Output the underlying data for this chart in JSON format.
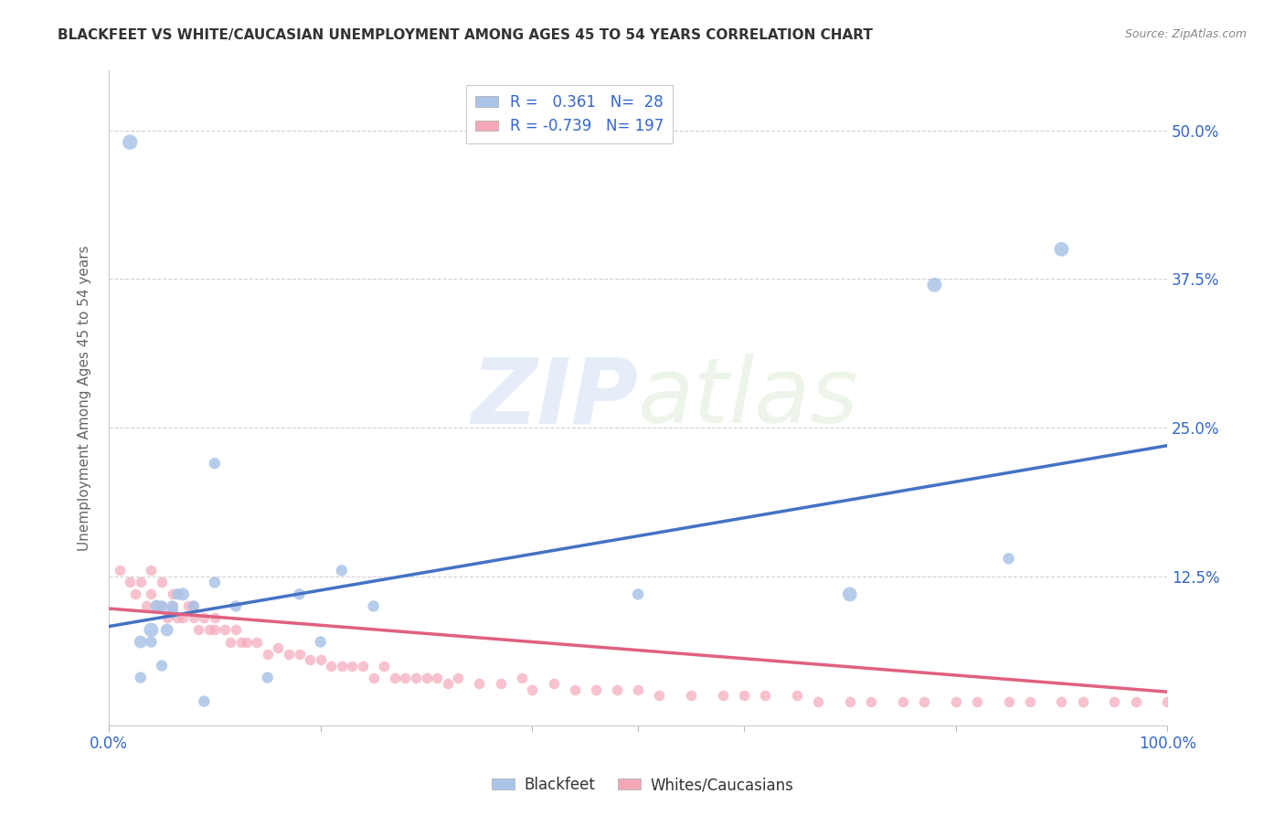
{
  "title": "BLACKFEET VS WHITE/CAUCASIAN UNEMPLOYMENT AMONG AGES 45 TO 54 YEARS CORRELATION CHART",
  "source": "Source: ZipAtlas.com",
  "ylabel": "Unemployment Among Ages 45 to 54 years",
  "xlim": [
    0,
    1.0
  ],
  "ylim": [
    0,
    0.55
  ],
  "yticks": [
    0.0,
    0.125,
    0.25,
    0.375,
    0.5
  ],
  "ytick_labels_right": [
    "",
    "12.5%",
    "25.0%",
    "37.5%",
    "50.0%"
  ],
  "xticks": [
    0.0,
    0.2,
    0.4,
    0.5,
    0.6,
    0.8,
    1.0
  ],
  "xtick_labels": [
    "0.0%",
    "",
    "",
    "",
    "",
    "",
    "100.0%"
  ],
  "blue_R": 0.361,
  "blue_N": 28,
  "pink_R": -0.739,
  "pink_N": 197,
  "blue_color": "#aac4e8",
  "pink_color": "#f4a8b8",
  "blue_line_color": "#4472c4",
  "pink_line_color": "#e06080",
  "legend_blue_label": "Blackfeet",
  "legend_pink_label": "Whites/Caucasians",
  "watermark_zip": "ZIP",
  "watermark_atlas": "atlas",
  "blue_scatter_x": [
    0.02,
    0.03,
    0.03,
    0.04,
    0.04,
    0.045,
    0.05,
    0.05,
    0.055,
    0.06,
    0.06,
    0.065,
    0.07,
    0.08,
    0.09,
    0.1,
    0.1,
    0.12,
    0.15,
    0.18,
    0.2,
    0.22,
    0.25,
    0.5,
    0.7,
    0.78,
    0.85,
    0.9
  ],
  "blue_scatter_y": [
    0.49,
    0.04,
    0.07,
    0.07,
    0.08,
    0.1,
    0.05,
    0.1,
    0.08,
    0.1,
    0.095,
    0.11,
    0.11,
    0.1,
    0.02,
    0.22,
    0.12,
    0.1,
    0.04,
    0.11,
    0.07,
    0.13,
    0.1,
    0.11,
    0.11,
    0.37,
    0.14,
    0.4
  ],
  "blue_scatter_sizes": [
    140,
    80,
    100,
    80,
    130,
    100,
    80,
    80,
    100,
    80,
    100,
    80,
    100,
    80,
    80,
    80,
    80,
    80,
    80,
    80,
    80,
    80,
    80,
    80,
    130,
    130,
    80,
    130
  ],
  "pink_scatter_x": [
    0.01,
    0.02,
    0.025,
    0.03,
    0.035,
    0.04,
    0.04,
    0.045,
    0.05,
    0.05,
    0.055,
    0.06,
    0.06,
    0.065,
    0.07,
    0.075,
    0.08,
    0.08,
    0.085,
    0.09,
    0.095,
    0.1,
    0.1,
    0.11,
    0.115,
    0.12,
    0.125,
    0.13,
    0.14,
    0.15,
    0.16,
    0.17,
    0.18,
    0.19,
    0.2,
    0.21,
    0.22,
    0.23,
    0.24,
    0.25,
    0.26,
    0.27,
    0.28,
    0.29,
    0.3,
    0.31,
    0.32,
    0.33,
    0.35,
    0.37,
    0.39,
    0.4,
    0.42,
    0.44,
    0.46,
    0.48,
    0.5,
    0.52,
    0.55,
    0.58,
    0.6,
    0.62,
    0.65,
    0.67,
    0.7,
    0.72,
    0.75,
    0.77,
    0.8,
    0.82,
    0.85,
    0.87,
    0.9,
    0.92,
    0.95,
    0.97,
    1.0
  ],
  "pink_scatter_y": [
    0.13,
    0.12,
    0.11,
    0.12,
    0.1,
    0.11,
    0.13,
    0.1,
    0.1,
    0.12,
    0.09,
    0.1,
    0.11,
    0.09,
    0.09,
    0.1,
    0.09,
    0.1,
    0.08,
    0.09,
    0.08,
    0.08,
    0.09,
    0.08,
    0.07,
    0.08,
    0.07,
    0.07,
    0.07,
    0.06,
    0.065,
    0.06,
    0.06,
    0.055,
    0.055,
    0.05,
    0.05,
    0.05,
    0.05,
    0.04,
    0.05,
    0.04,
    0.04,
    0.04,
    0.04,
    0.04,
    0.035,
    0.04,
    0.035,
    0.035,
    0.04,
    0.03,
    0.035,
    0.03,
    0.03,
    0.03,
    0.03,
    0.025,
    0.025,
    0.025,
    0.025,
    0.025,
    0.025,
    0.02,
    0.02,
    0.02,
    0.02,
    0.02,
    0.02,
    0.02,
    0.02,
    0.02,
    0.02,
    0.02,
    0.02,
    0.02,
    0.02
  ],
  "blue_trendline_x": [
    0.0,
    1.0
  ],
  "blue_trendline_y": [
    0.083,
    0.235
  ],
  "pink_trendline_x": [
    0.0,
    1.0
  ],
  "pink_trendline_y": [
    0.098,
    0.028
  ],
  "background_color": "#ffffff",
  "grid_color": "#cccccc",
  "tick_color": "#3366cc",
  "title_color": "#333333",
  "source_color": "#888888",
  "ylabel_color": "#666666"
}
